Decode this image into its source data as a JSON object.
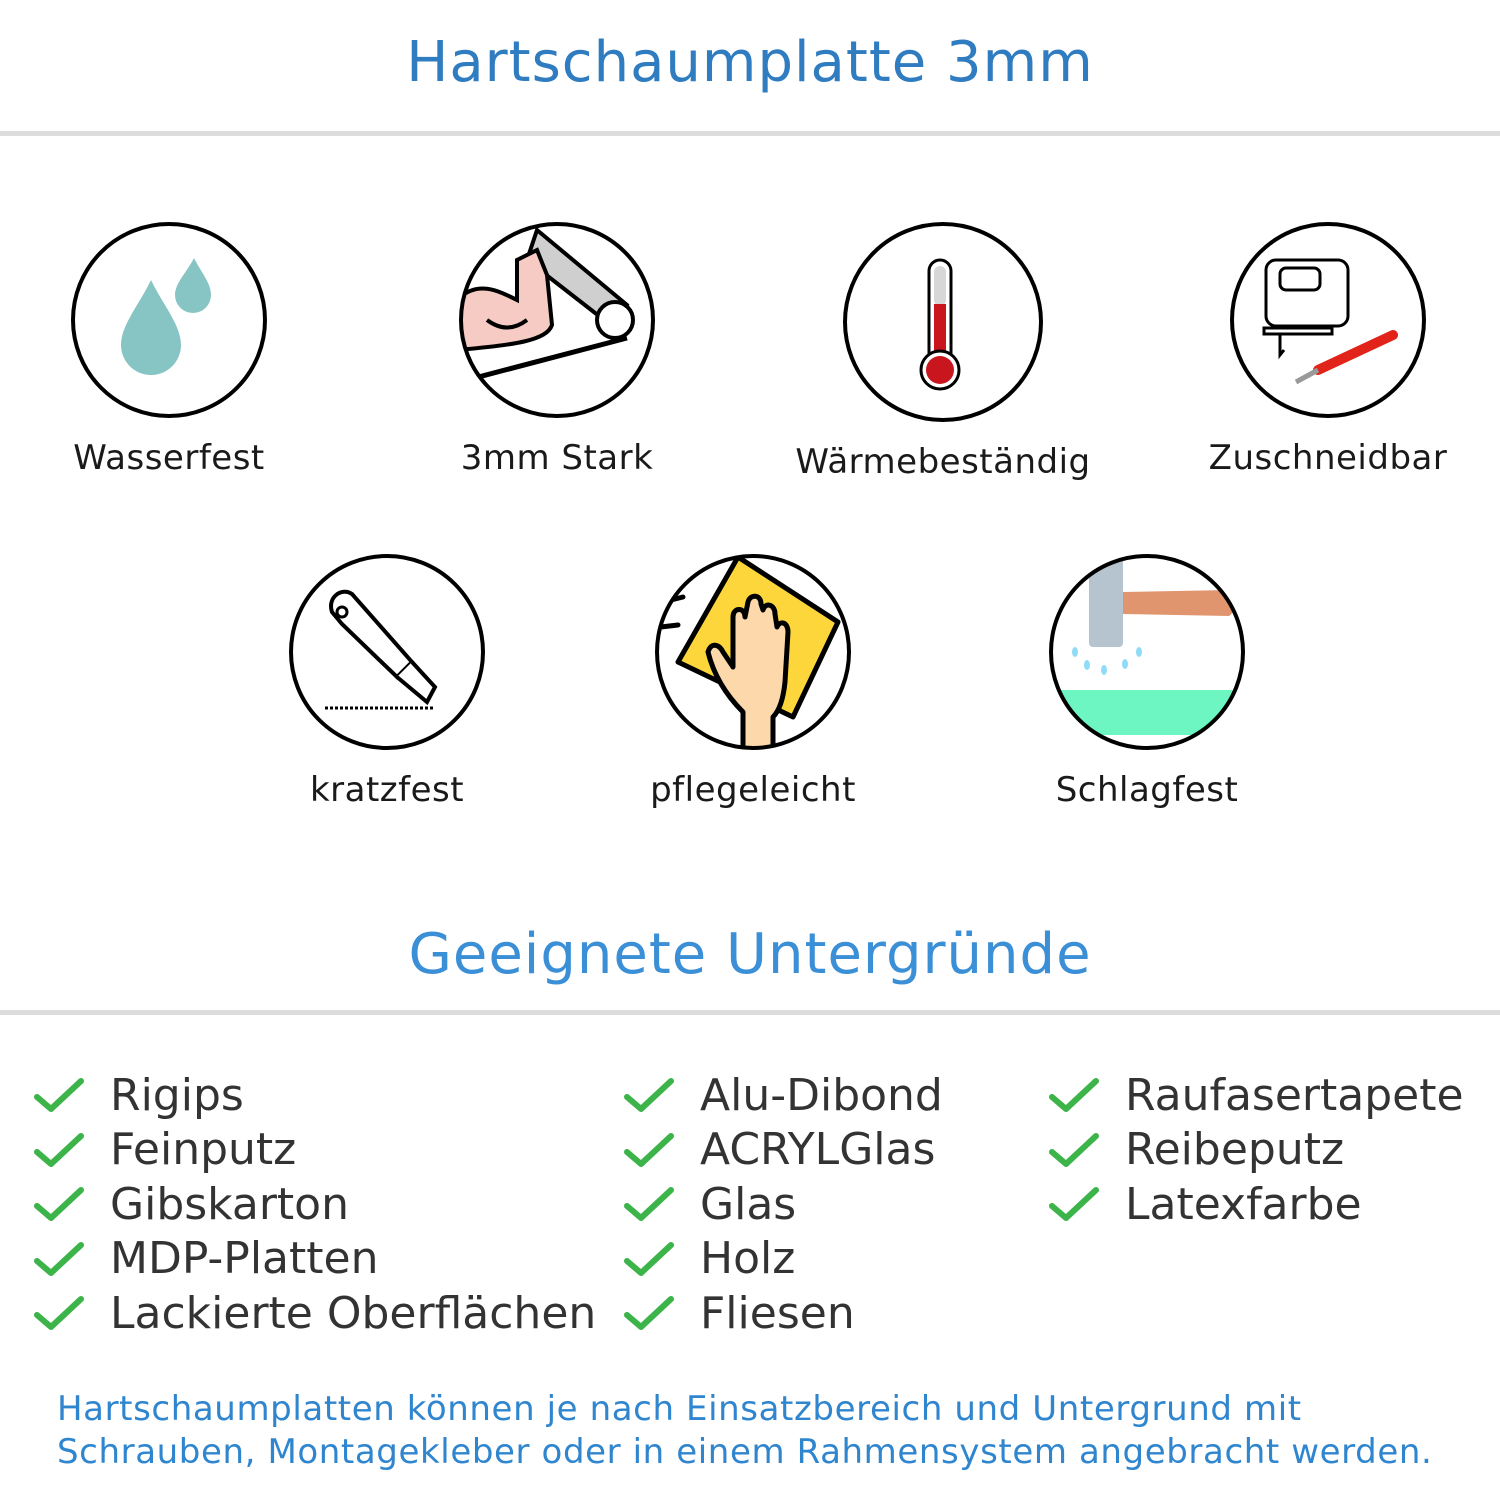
{
  "header": {
    "title": "Hartschaumplatte 3mm",
    "color": "#2f7cc0"
  },
  "features": [
    {
      "label": "Wasserfest",
      "icon": "water-drops-icon"
    },
    {
      "label": "3mm Stark",
      "icon": "strong-arm-icon"
    },
    {
      "label": "Wärmebeständig",
      "icon": "thermometer-icon"
    },
    {
      "label": "Zuschneidbar",
      "icon": "jigsaw-knife-icon"
    },
    {
      "label": "kratzfest",
      "icon": "cutter-knife-icon"
    },
    {
      "label": "pflegeleicht",
      "icon": "wiping-hand-icon"
    },
    {
      "label": "Schlagfest",
      "icon": "hammer-icon"
    }
  ],
  "surfaces": {
    "title": "Geeignete Untergründe",
    "check_color": "#3cb44a",
    "columns": [
      [
        "Rigips",
        "Feinputz",
        "Gibskarton",
        "MDP-Platten",
        "Lackierte Oberflächen"
      ],
      [
        "Alu-Dibond",
        "ACRYLGlas",
        "Glas",
        "Holz",
        "Fliesen"
      ],
      [
        "Raufasertapete",
        "Reibeputz",
        "Latexfarbe"
      ]
    ]
  },
  "footer": {
    "line1": "Hartschaumplatten können je nach Einsatzbereich und Untergrund mit",
    "line2": "Schrauben, Montagekleber oder in einem Rahmensystem angebracht werden."
  }
}
